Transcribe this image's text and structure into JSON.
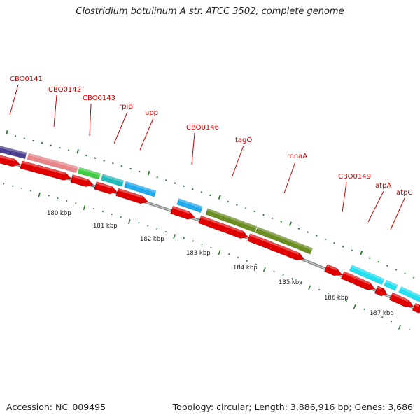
{
  "title": "Clostridium botulinum A str. ATCC 3502, complete genome",
  "footer": {
    "accession": "Accession: NC_009495",
    "topology": "Topology: circular; Length: 3,886,916 bp; Genes: 3,686"
  },
  "colors": {
    "backbone": "#8a8a8a",
    "cds_forward": "#e00000",
    "gene_label": "#cc0000",
    "tick": "#2e7d32"
  },
  "gene_labels": [
    {
      "id": "cbo0141",
      "text": "CBO0141"
    },
    {
      "id": "cbo0142",
      "text": "CBO0142"
    },
    {
      "id": "cbo0143",
      "text": "CBO0143"
    },
    {
      "id": "rpib",
      "text": "rpiB"
    },
    {
      "id": "upp",
      "text": "upp"
    },
    {
      "id": "cbo0146",
      "text": "CBO0146"
    },
    {
      "id": "tago",
      "text": "tagO"
    },
    {
      "id": "mnaa",
      "text": "mnaA"
    },
    {
      "id": "cbo0149",
      "text": "CBO0149"
    },
    {
      "id": "atpa",
      "text": "atpA"
    },
    {
      "id": "atpc",
      "text": "atpC"
    }
  ],
  "kbp_labels": [
    "180 kbp",
    "181 kbp",
    "182 kbp",
    "183 kbp",
    "184 kbp",
    "185 kbp",
    "186 kbp",
    "187 kbp"
  ],
  "cog_genes": [
    {
      "color": "#4a3f8f"
    },
    {
      "color": "#e8868a"
    },
    {
      "color": "#44cc44"
    },
    {
      "color": "#22bbbb"
    },
    {
      "color": "#22aaee"
    },
    {
      "color": "#22aaee"
    },
    {
      "color": "#6b8e23"
    },
    {
      "color": "#6b8e23"
    },
    {
      "color": "#22e0f0"
    },
    {
      "color": "#22e0f0"
    },
    {
      "color": "#22e0f0"
    }
  ]
}
